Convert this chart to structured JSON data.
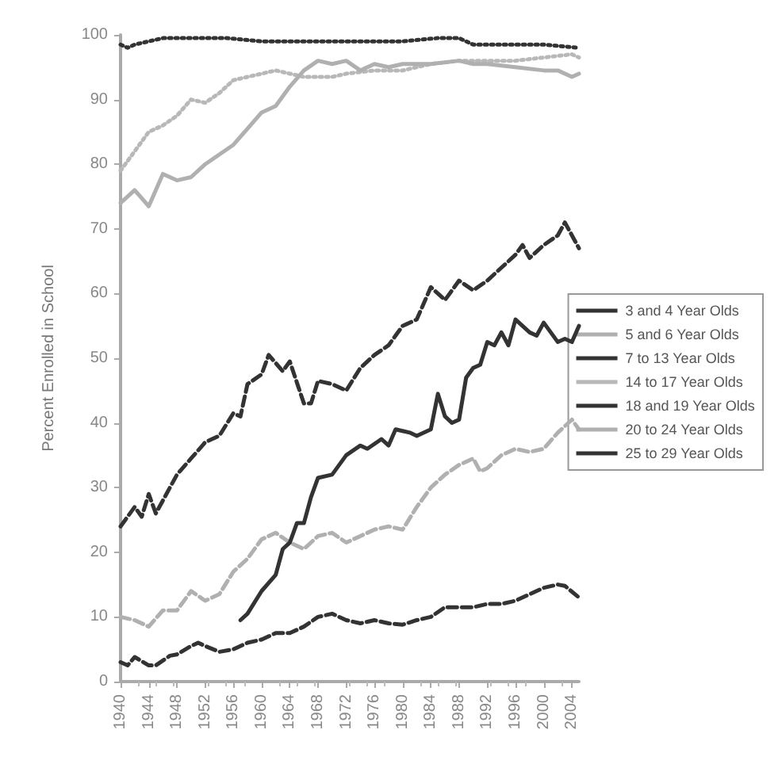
{
  "chart_data": {
    "type": "line",
    "ylabel": "Percent Enrolled in School",
    "xlim": [
      1940,
      2005
    ],
    "xticks": [
      1940,
      1944,
      1948,
      1952,
      1956,
      1960,
      1964,
      1968,
      1972,
      1976,
      1980,
      1984,
      1988,
      1992,
      1996,
      2000,
      2004
    ],
    "ylim": [
      0,
      100
    ],
    "yticks": [
      0,
      10,
      20,
      30,
      40,
      50,
      60,
      70,
      80,
      90,
      100
    ],
    "grid": false,
    "legend": "right",
    "marker": "none",
    "series": [
      {
        "name": "3 and 4 Year Olds",
        "color": "#333333",
        "line_style": "solid",
        "x": [
          1957,
          1958,
          1960,
          1962,
          1963,
          1964,
          1965,
          1966,
          1967,
          1968,
          1970,
          1972,
          1974,
          1975,
          1977,
          1978,
          1979,
          1981,
          1982,
          1984,
          1985,
          1986,
          1987,
          1988,
          1989,
          1990,
          1991,
          1992,
          1993,
          1994,
          1995,
          1996,
          1998,
          1999,
          2000,
          2002,
          2003,
          2004,
          2005
        ],
        "values": [
          9.5,
          10.5,
          14,
          16.5,
          20.5,
          21.5,
          24.5,
          24.5,
          28.5,
          31.5,
          32,
          35,
          36.5,
          36,
          37.5,
          36.5,
          39,
          38.5,
          38,
          39,
          44.5,
          41,
          40,
          40.5,
          47,
          48.5,
          49,
          52.5,
          52,
          54,
          52,
          56,
          54,
          53.5,
          55.5,
          52.5,
          53,
          52.5,
          55
        ]
      },
      {
        "name": "5 and 6 Year Olds",
        "color": "#b0b0b0",
        "line_style": "solid",
        "x": [
          1940,
          1942,
          1944,
          1946,
          1948,
          1950,
          1952,
          1954,
          1956,
          1958,
          1960,
          1962,
          1964,
          1966,
          1968,
          1970,
          1972,
          1974,
          1976,
          1978,
          1980,
          1984,
          1988,
          1990,
          1992,
          1996,
          2000,
          2002,
          2004,
          2005
        ],
        "values": [
          74,
          76,
          73.5,
          78.5,
          77.5,
          78,
          80,
          81.5,
          83,
          85.5,
          88,
          89,
          92,
          94.5,
          96,
          95.5,
          96,
          94.5,
          95.5,
          95,
          95.5,
          95.5,
          96,
          95.5,
          95.5,
          95,
          94.5,
          94.5,
          93.5,
          94
        ]
      },
      {
        "name": "7 to 13 Year Olds",
        "color": "#333333",
        "line_style": "dotted",
        "x": [
          1940,
          1941,
          1942,
          1944,
          1946,
          1950,
          1955,
          1960,
          1965,
          1970,
          1975,
          1980,
          1985,
          1988,
          1990,
          1995,
          2000,
          2005
        ],
        "values": [
          98.5,
          98,
          98.5,
          99,
          99.5,
          99.5,
          99.5,
          99,
          99,
          99,
          99,
          99,
          99.5,
          99.5,
          98.5,
          98.5,
          98.5,
          98
        ]
      },
      {
        "name": "14 to 17 Year Olds",
        "color": "#b8b8b8",
        "line_style": "dotted",
        "x": [
          1940,
          1942,
          1944,
          1946,
          1948,
          1950,
          1952,
          1954,
          1956,
          1958,
          1960,
          1962,
          1964,
          1966,
          1968,
          1970,
          1972,
          1976,
          1980,
          1984,
          1988,
          1992,
          1996,
          2000,
          2004,
          2005
        ],
        "values": [
          79,
          82,
          85,
          86,
          87.5,
          90,
          89.5,
          91,
          93,
          93.5,
          94,
          94.5,
          94,
          93.5,
          93.5,
          93.5,
          94,
          94.5,
          94.5,
          95.5,
          96,
          96,
          96,
          96.5,
          97,
          96.5
        ]
      },
      {
        "name": "18 and 19 Year Olds",
        "color": "#333333",
        "line_style": "dashed",
        "x": [
          1940,
          1942,
          1943,
          1944,
          1945,
          1948,
          1950,
          1952,
          1954,
          1956,
          1957,
          1958,
          1960,
          1961,
          1963,
          1964,
          1966,
          1967,
          1968,
          1970,
          1972,
          1974,
          1976,
          1978,
          1980,
          1982,
          1984,
          1986,
          1988,
          1990,
          1992,
          1994,
          1996,
          1997,
          1998,
          2000,
          2002,
          2003,
          2005
        ],
        "values": [
          24,
          27,
          25.5,
          29,
          26,
          32,
          34.5,
          37,
          38,
          41.5,
          41,
          46,
          47.5,
          50.5,
          48,
          49.5,
          43,
          43,
          46.5,
          46,
          45,
          48.5,
          50.5,
          52,
          55,
          56,
          61,
          59,
          62,
          60.5,
          62,
          64,
          66,
          67.5,
          65.5,
          67.5,
          69,
          71,
          67
        ]
      },
      {
        "name": "20 to 24 Year Olds",
        "color": "#b0b0b0",
        "line_style": "dashed",
        "x": [
          1940,
          1942,
          1944,
          1946,
          1948,
          1950,
          1952,
          1954,
          1956,
          1958,
          1960,
          1962,
          1964,
          1966,
          1968,
          1970,
          1972,
          1974,
          1976,
          1978,
          1980,
          1982,
          1984,
          1986,
          1988,
          1990,
          1991,
          1992,
          1994,
          1996,
          1998,
          2000,
          2002,
          2004,
          2005
        ],
        "values": [
          10,
          9.5,
          8.5,
          11,
          11,
          14,
          12.5,
          13.5,
          17,
          19,
          22,
          23,
          21.5,
          20.5,
          22.5,
          23,
          21.5,
          22.5,
          23.5,
          24,
          23.5,
          27,
          30,
          32,
          33.5,
          34.5,
          32.5,
          33,
          35,
          36,
          35.5,
          36,
          38.5,
          40.5,
          39
        ]
      },
      {
        "name": "25 to 29 Year Olds",
        "color": "#333333",
        "line_style": "dashed",
        "x": [
          1940,
          1941,
          1942,
          1944,
          1945,
          1947,
          1948,
          1950,
          1951,
          1952,
          1954,
          1956,
          1958,
          1960,
          1962,
          1964,
          1966,
          1968,
          1970,
          1972,
          1974,
          1976,
          1978,
          1980,
          1982,
          1984,
          1986,
          1988,
          1990,
          1992,
          1994,
          1996,
          1998,
          2000,
          2002,
          2003,
          2005
        ],
        "values": [
          3,
          2.5,
          3.8,
          2.5,
          2.5,
          4,
          4.2,
          5.5,
          6,
          5.5,
          4.6,
          5,
          6,
          6.5,
          7.5,
          7.5,
          8.5,
          10,
          10.5,
          9.5,
          9,
          9.5,
          9,
          8.8,
          9.5,
          10,
          11.5,
          11.5,
          11.5,
          12,
          12,
          12.5,
          13.5,
          14.5,
          15,
          14.8,
          13
        ]
      }
    ]
  }
}
